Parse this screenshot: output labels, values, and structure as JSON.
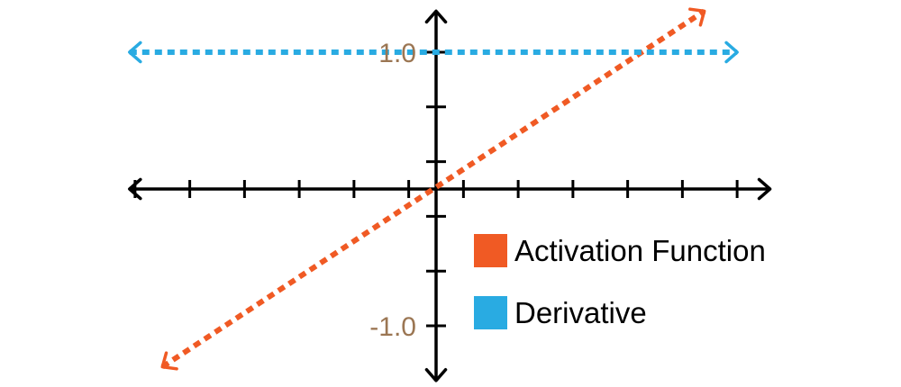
{
  "chart_data": {
    "type": "line",
    "title": "",
    "xlabel": "",
    "ylabel": "",
    "xlim": [
      -5.6,
      6.1
    ],
    "ylim": [
      -1.4,
      1.3
    ],
    "x_ticks": [
      -5.5,
      -4.5,
      -3.5,
      -2.5,
      -1.5,
      -0.5,
      0.5,
      1.5,
      2.5,
      3.5,
      4.5,
      5.5
    ],
    "y_ticks": [
      -1.0,
      -0.6,
      -0.2,
      0.2,
      0.6,
      1.0
    ],
    "y_tick_labels": [
      {
        "value": 1.0,
        "label": "1.0"
      },
      {
        "value": -1.0,
        "label": "-1.0"
      }
    ],
    "grid": false,
    "legend_position": "lower-right",
    "series": [
      {
        "name": "Activation Function",
        "color": "#f05a24",
        "style": "dotted",
        "x": [
          -5.0,
          4.9
        ],
        "y": [
          -1.3,
          1.3
        ]
      },
      {
        "name": "Derivative",
        "color": "#29abe2",
        "style": "dotted",
        "x": [
          -5.6,
          5.5
        ],
        "y": [
          1.0,
          1.0
        ]
      }
    ],
    "axis_color": "#000000",
    "tick_label_color": "#9b7653"
  }
}
